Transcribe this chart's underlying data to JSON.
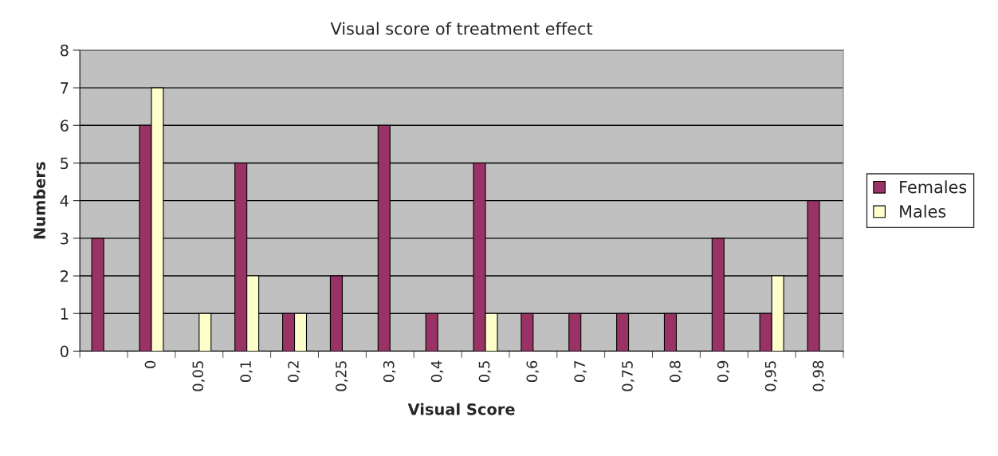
{
  "chart_data": {
    "type": "bar",
    "title": "Visual score of treatment effect",
    "xlabel": "Visual Score",
    "ylabel": "Numbers",
    "categories": [
      null,
      "0",
      "0,05",
      "0,1",
      "0,2",
      "0,25",
      "0,3",
      "0,4",
      "0,5",
      "0,6",
      "0,7",
      "0,75",
      "0,8",
      "0,9",
      "0,95",
      "0,98"
    ],
    "series": [
      {
        "name": "Females",
        "color": "#993366",
        "values": [
          3,
          6,
          null,
          5,
          1,
          2,
          6,
          1,
          5,
          1,
          1,
          1,
          1,
          3,
          1,
          4
        ]
      },
      {
        "name": "Males",
        "color": "#ffffcc",
        "values": [
          null,
          7,
          1,
          2,
          1,
          null,
          null,
          null,
          1,
          null,
          null,
          null,
          null,
          null,
          2,
          null
        ]
      }
    ],
    "ylim": [
      0,
      8
    ],
    "yticks": [
      0,
      1,
      2,
      3,
      4,
      5,
      6,
      7,
      8
    ],
    "grid": "y",
    "legend": "right"
  }
}
